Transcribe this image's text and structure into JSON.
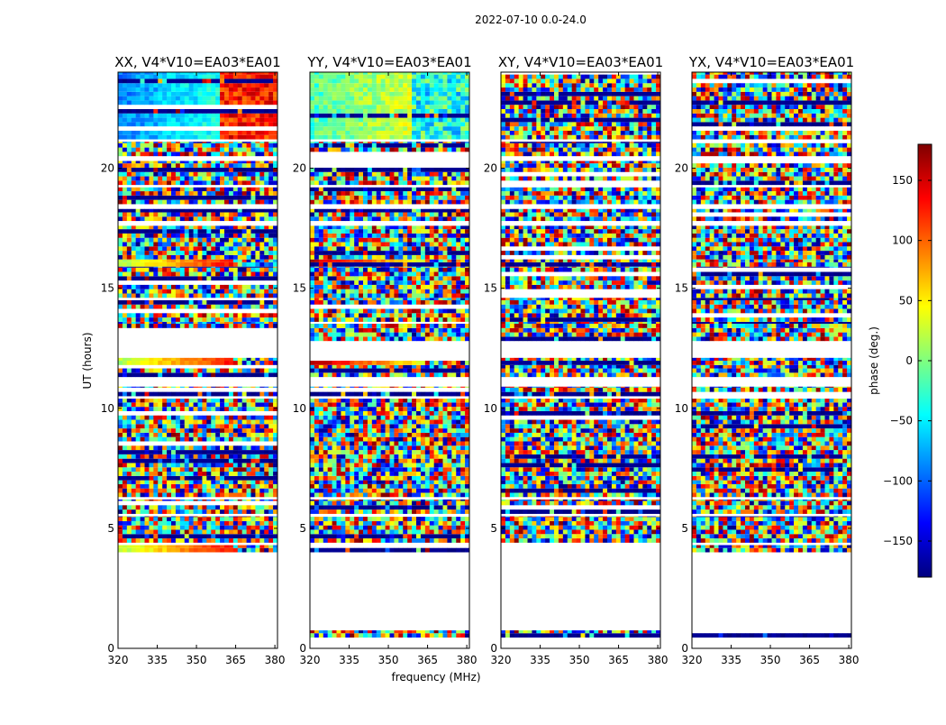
{
  "figure": {
    "suptitle": "2022-07-10 0.0-24.0",
    "xlabel": "frequency (MHz)",
    "ylabel": "UT (hours)"
  },
  "colorbar": {
    "label": "phase (deg.)",
    "ticks": [
      150,
      100,
      50,
      0,
      -50,
      -100,
      -150
    ],
    "tick_labels": [
      "150",
      "100",
      "50",
      "0",
      "−50",
      "−100",
      "−150"
    ],
    "range": [
      -180,
      180
    ],
    "colormap": "jet",
    "colors": [
      "#00007f",
      "#0000ff",
      "#007fff",
      "#00ffff",
      "#7fff7f",
      "#ffff00",
      "#ff7f00",
      "#ff0000",
      "#7f0000"
    ]
  },
  "chart_data": [
    {
      "type": "heatmap",
      "title": "XX, V4*V10=EA03*EA01",
      "xlabel": "",
      "ylabel": "UT (hours)",
      "xlim": [
        320,
        381
      ],
      "ylim": [
        0,
        24
      ],
      "xticks": [
        320,
        335,
        350,
        365,
        380
      ],
      "xtick_labels": [
        "320",
        "335",
        "350",
        "365",
        "380"
      ],
      "yticks": [
        0,
        5,
        10,
        15,
        20
      ],
      "ytick_labels": [
        "0",
        "5",
        "10",
        "15",
        "20"
      ],
      "z_unit": "phase (deg.)"
    },
    {
      "type": "heatmap",
      "title": "YY, V4*V10=EA03*EA01",
      "xlabel": "frequency (MHz)",
      "ylabel": "",
      "xlim": [
        320,
        381
      ],
      "ylim": [
        0,
        24
      ],
      "xticks": [
        320,
        335,
        350,
        365,
        380
      ],
      "xtick_labels": [
        "320",
        "335",
        "350",
        "365",
        "380"
      ],
      "yticks": [
        0,
        5,
        10,
        15,
        20
      ],
      "ytick_labels": [
        "0",
        "5",
        "10",
        "15",
        "20"
      ],
      "z_unit": "phase (deg.)"
    },
    {
      "type": "heatmap",
      "title": "XY, V4*V10=EA03*EA01",
      "xlabel": "",
      "ylabel": "",
      "xlim": [
        320,
        381
      ],
      "ylim": [
        0,
        24
      ],
      "xticks": [
        320,
        335,
        350,
        365,
        380
      ],
      "xtick_labels": [
        "320",
        "335",
        "350",
        "365",
        "380"
      ],
      "yticks": [
        0,
        5,
        10,
        15,
        20
      ],
      "ytick_labels": [
        "0",
        "5",
        "10",
        "15",
        "20"
      ],
      "z_unit": "phase (deg.)"
    },
    {
      "type": "heatmap",
      "title": "YX, V4*V10=EA03*EA01",
      "xlabel": "",
      "ylabel": "",
      "xlim": [
        320,
        381
      ],
      "ylim": [
        0,
        24
      ],
      "xticks": [
        320,
        335,
        350,
        365,
        380
      ],
      "xtick_labels": [
        "320",
        "335",
        "350",
        "365",
        "380"
      ],
      "yticks": [
        0,
        5,
        10,
        15,
        20
      ],
      "ytick_labels": [
        "0",
        "5",
        "10",
        "15",
        "20"
      ],
      "z_unit": "phase (deg.)"
    }
  ]
}
